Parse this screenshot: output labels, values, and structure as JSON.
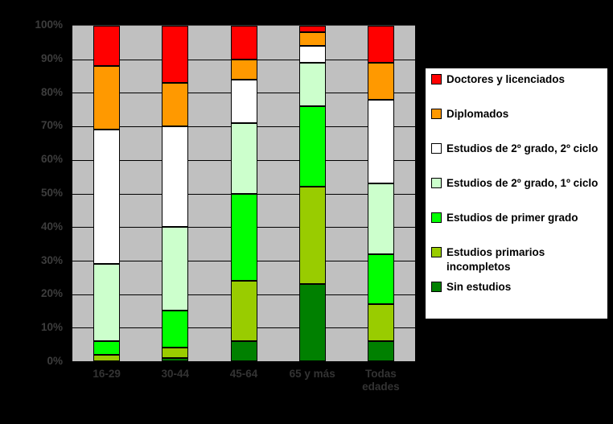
{
  "page": {
    "background_color": "#000000",
    "plot_background_color": "#C0C0C0",
    "gridline_color": "#000000",
    "axis_text_color": "#3d3d3d",
    "legend_background_color": "#FFFFFF",
    "legend_border_color": "#000000"
  },
  "chart_data": {
    "type": "bar",
    "stacked": true,
    "percent_stacked": true,
    "title": "",
    "xlabel": "",
    "ylabel": "",
    "ylim": [
      0,
      100
    ],
    "grid": true,
    "legend_position": "right",
    "y_ticks": [
      "0%",
      "10%",
      "20%",
      "30%",
      "40%",
      "50%",
      "60%",
      "70%",
      "80%",
      "90%",
      "100%"
    ],
    "categories": [
      "16-29",
      "30-44",
      "45-64",
      "65 y más",
      "Todas edades"
    ],
    "series": [
      {
        "name": "Doctores y licenciados",
        "color": "#FF0000",
        "values": [
          12,
          17,
          10,
          2,
          11
        ]
      },
      {
        "name": "Diplomados",
        "color": "#FF9900",
        "values": [
          19,
          13,
          6,
          4,
          11
        ]
      },
      {
        "name": "Estudios de 2º grado, 2º ciclo",
        "color": "#FFFFFF",
        "values": [
          40,
          30,
          13,
          5,
          25
        ]
      },
      {
        "name": "Estudios de 2º grado, 1º ciclo",
        "color": "#CCFFCC",
        "values": [
          23,
          25,
          21,
          13,
          21
        ]
      },
      {
        "name": "Estudios de primer grado",
        "color": "#00FF00",
        "values": [
          4,
          11,
          26,
          24,
          15
        ]
      },
      {
        "name": "Estudios primarios incompletos",
        "color": "#99CC00",
        "values": [
          2,
          3,
          18,
          29,
          11
        ]
      },
      {
        "name": "Sin estudios",
        "color": "#008000",
        "values": [
          0,
          1,
          6,
          23,
          6
        ]
      }
    ]
  }
}
